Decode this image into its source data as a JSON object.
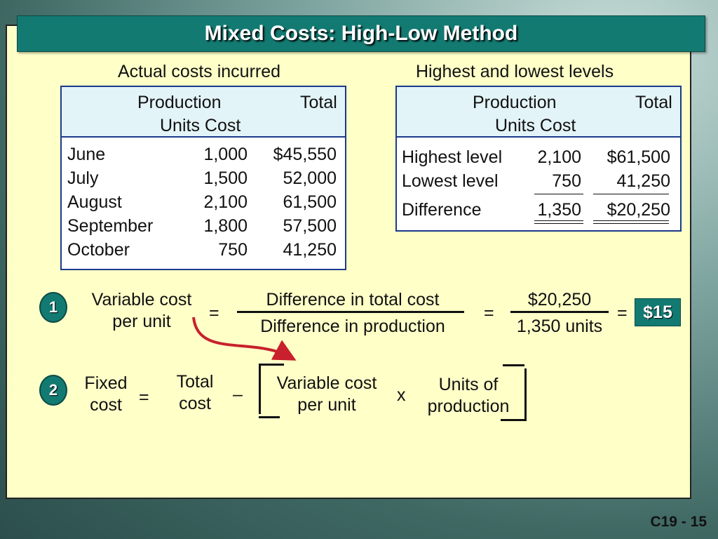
{
  "title": "Mixed Costs:  High-Low Method",
  "left_table": {
    "caption": "Actual costs incurred",
    "header_line1_a": "Production",
    "header_line1_b": "Total",
    "header_line2": "Units Cost",
    "rows": [
      {
        "month": "June",
        "units": "1,000",
        "cost": "$45,550"
      },
      {
        "month": "July",
        "units": "1,500",
        "cost": "52,000"
      },
      {
        "month": "August",
        "units": "2,100",
        "cost": "61,500"
      },
      {
        "month": "September",
        "units": "1,800",
        "cost": "57,500"
      },
      {
        "month": "October",
        "units": "750",
        "cost": "41,250"
      }
    ]
  },
  "right_table": {
    "caption": "Highest and lowest levels",
    "header_line1_a": "Production",
    "header_line1_b": "Total",
    "header_line2": "Units Cost",
    "rows": [
      {
        "label": "Highest level",
        "units": "2,100",
        "cost": "$61,500"
      },
      {
        "label": "Lowest level",
        "units": "750",
        "cost": "41,250"
      },
      {
        "label": "Difference",
        "units": "1,350",
        "cost": "$20,250"
      }
    ]
  },
  "step1": {
    "number": "1",
    "label_line1": "Variable cost",
    "label_line2": "per unit",
    "equals": "=",
    "fraction_numerator": "Difference in total cost",
    "fraction_denominator": "Difference in production",
    "value_numerator": "$20,250",
    "value_denominator": "1,350 units",
    "result": "$15"
  },
  "step2": {
    "number": "2",
    "fixed_line1": "Fixed",
    "fixed_line2": "cost",
    "equals": "=",
    "total_line1": "Total",
    "total_line2": "cost",
    "minus": "–",
    "var_line1": "Variable cost",
    "var_line2": "per unit",
    "times": "x",
    "units_line1": "Units of",
    "units_line2": "production"
  },
  "footer": "C19 - 15",
  "colors": {
    "accent": "#137a72",
    "panel": "#ffffc8",
    "arrow": "#c8202c",
    "table_border": "#1a3a8a"
  }
}
